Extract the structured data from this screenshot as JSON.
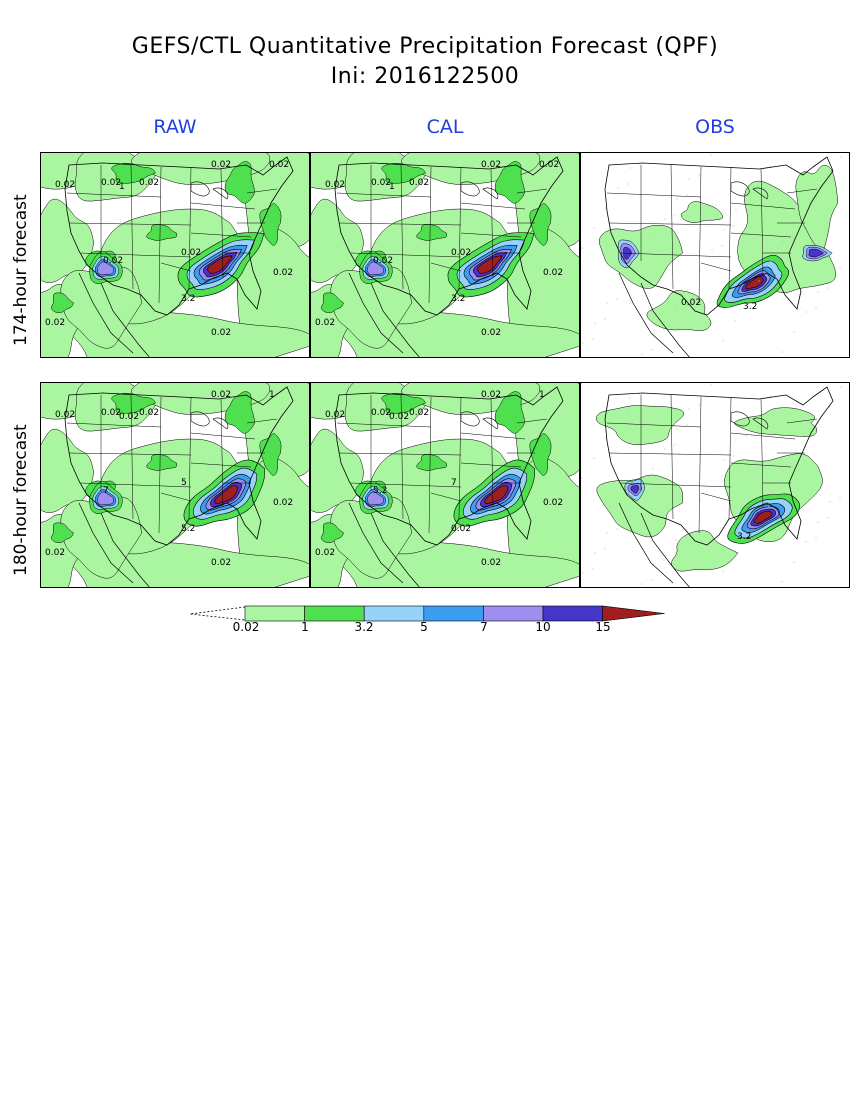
{
  "title_line1": "GEFS/CTL Quantitative Precipitation Forecast (QPF)",
  "title_line2": "Ini: 2016122500",
  "columns": [
    "RAW",
    "CAL",
    "OBS"
  ],
  "rows": [
    "174-hour forecast",
    "180-hour forecast"
  ],
  "colorbar": {
    "levels": [
      "0.02",
      "1",
      "3.2",
      "5",
      "7",
      "10",
      "15"
    ],
    "colors": [
      "#aaf5a0",
      "#4ee04e",
      "#96d2fa",
      "#3c9cf0",
      "#9e8ef0",
      "#4536c8",
      "#a01e1e"
    ]
  },
  "panel_labels": {
    "raw174": [
      "0.02",
      "0.02",
      "1",
      "0.02",
      "0.02",
      "0.02",
      "0.02",
      "0.02",
      "3.2",
      "0.02",
      "0.02",
      "0.02"
    ],
    "cal174": [
      "0.02",
      "0.02",
      "1",
      "0.02",
      "0.02",
      "0.02",
      "0.02",
      "0.02",
      "3.2",
      "0.02",
      "0.02",
      "0.02"
    ],
    "obs174": [
      "3.2",
      "0.02"
    ],
    "raw180": [
      "0.02",
      "0.02",
      "0.02",
      "0.02",
      "0.02",
      "1",
      "5",
      "7",
      "5.2",
      "0.02",
      "0.02",
      "0.02"
    ],
    "cal180": [
      "0.02",
      "0.02",
      "0.02",
      "0.02",
      "0.02",
      "1",
      "7",
      "5.2",
      "0.02",
      "0.02",
      "0.02",
      "0.02"
    ],
    "obs180": [
      "3.2"
    ]
  }
}
